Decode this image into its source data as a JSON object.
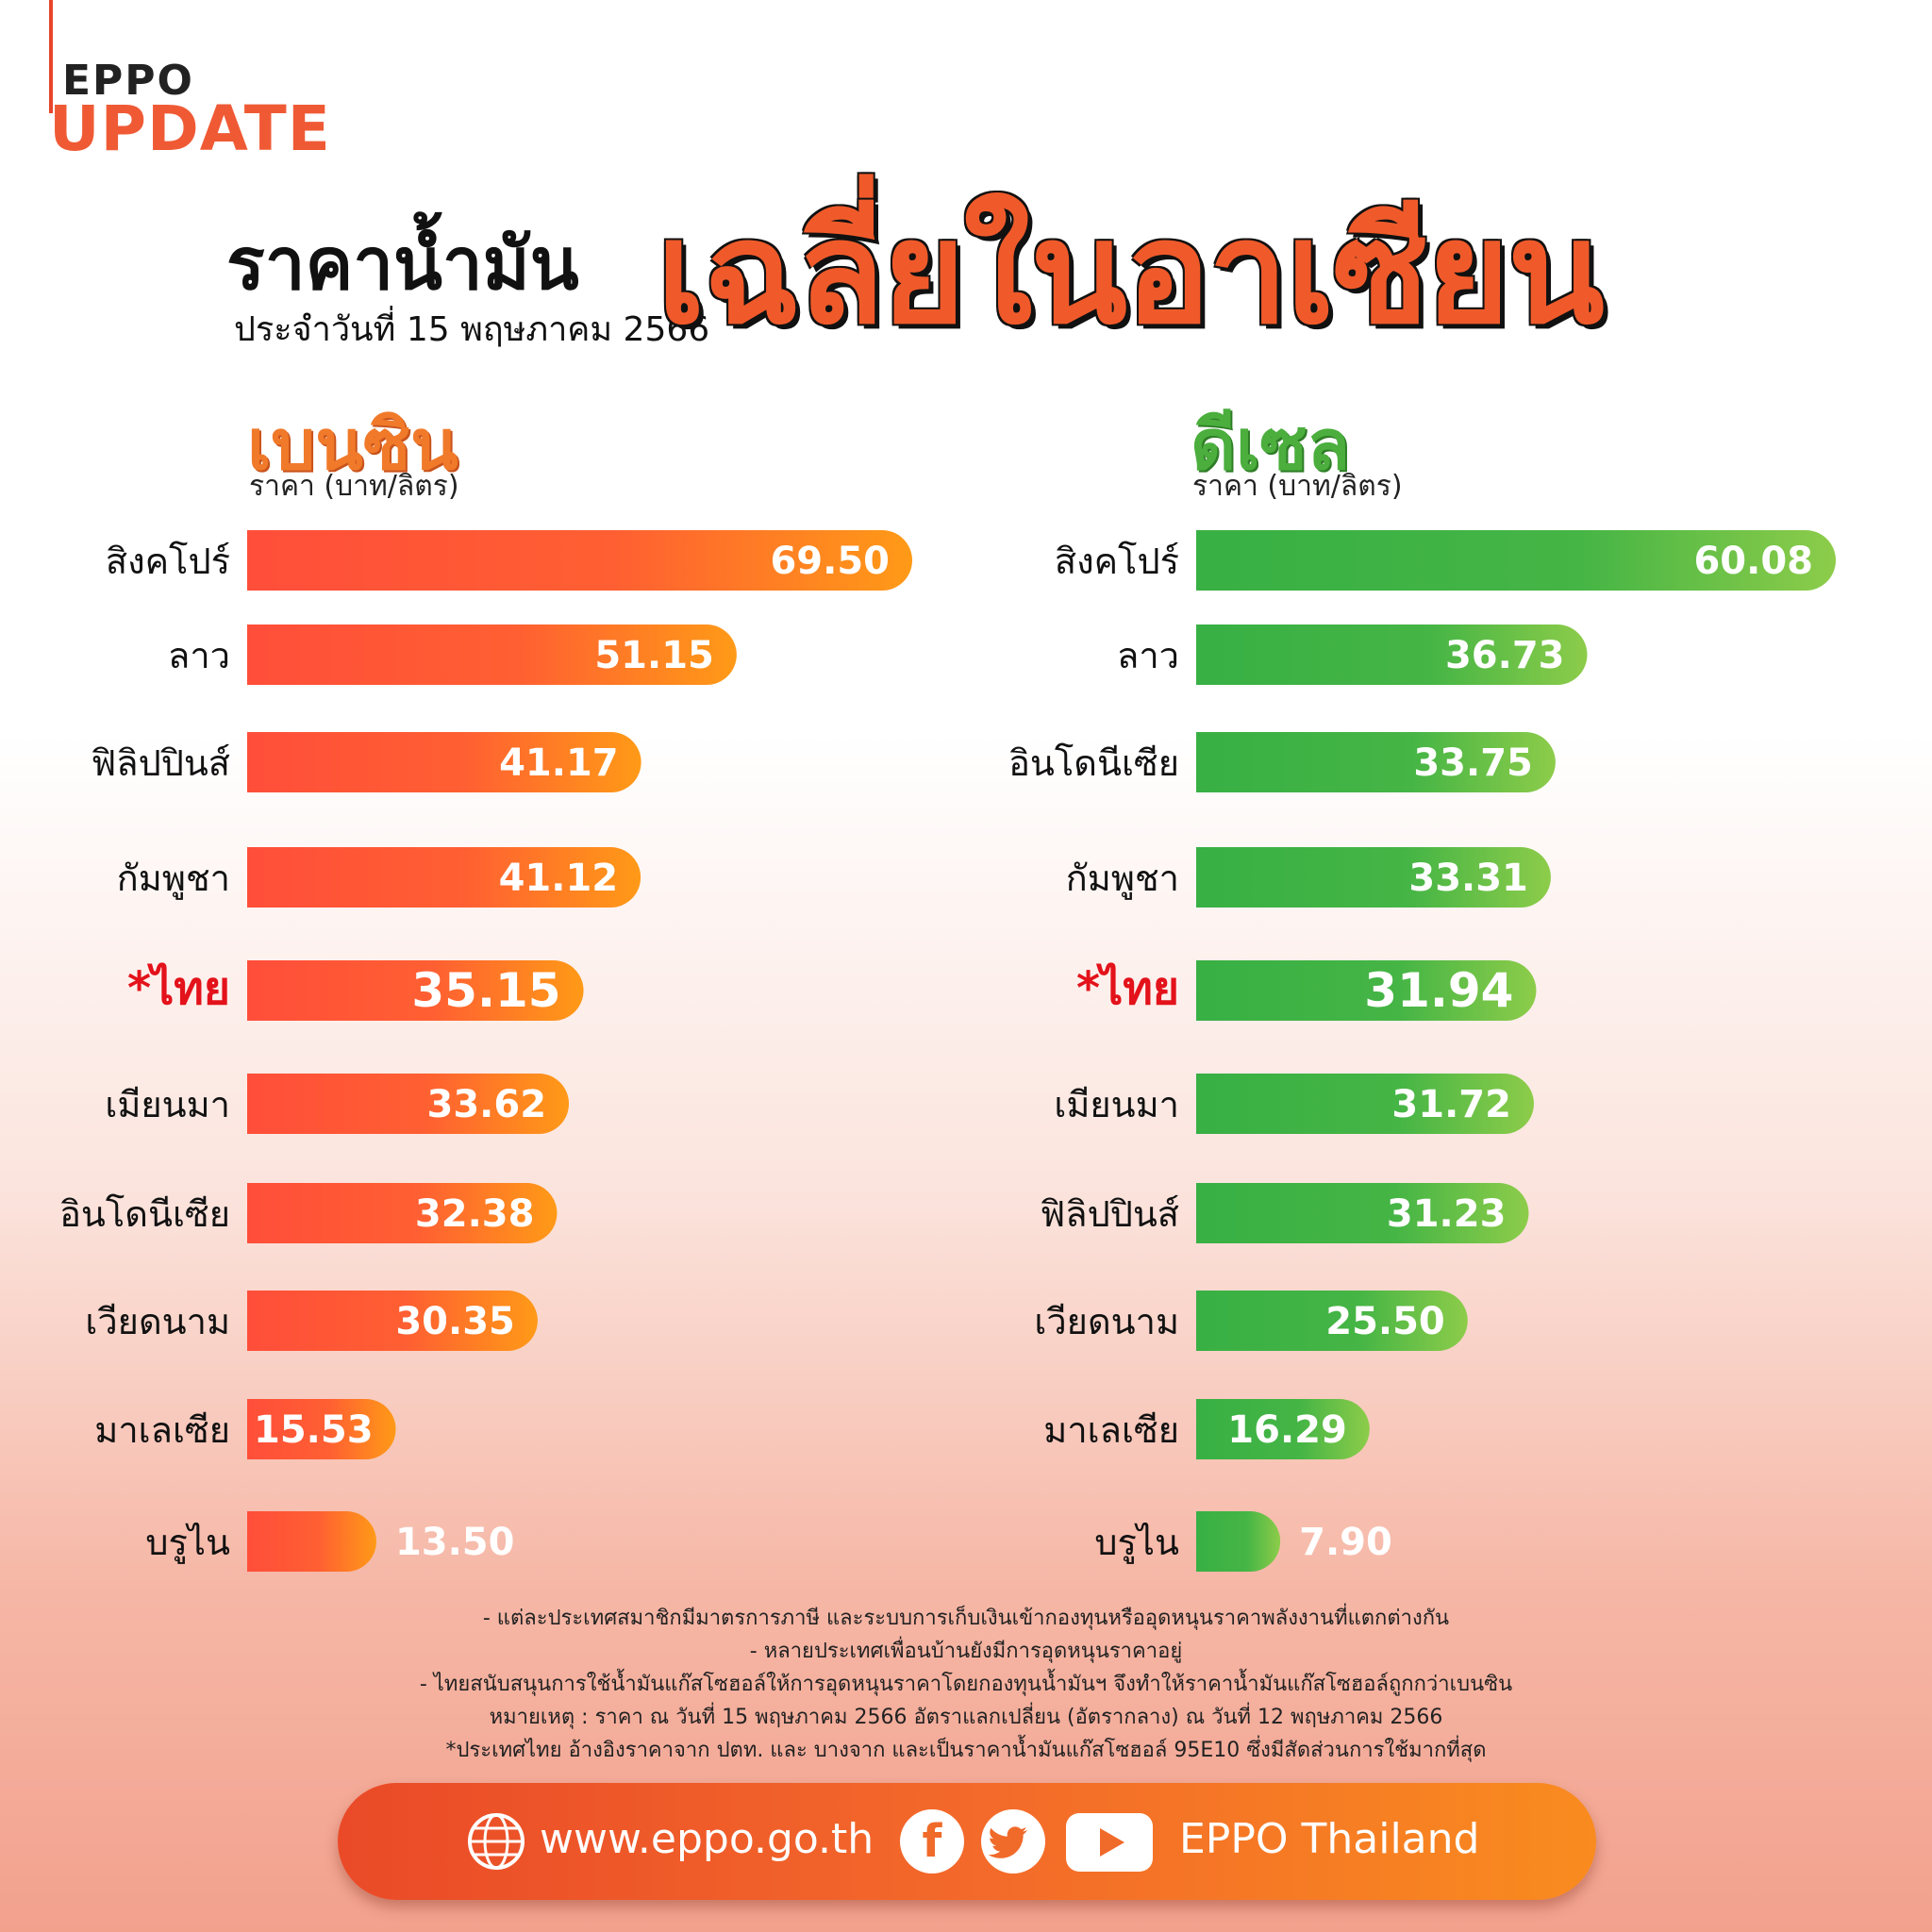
{
  "brand": {
    "line1": "EPPO",
    "line2": "UPDATE"
  },
  "header": {
    "title": "ราคาน้ำมัน",
    "date": "ประจำวันที่ 15 พฤษภาคม 2566",
    "highlight": "เฉลี่ยในอาเซียน"
  },
  "colors": {
    "petrol_start": "#ff4e3a",
    "petrol_end": "#ff9a17",
    "diesel_start": "#38b044",
    "diesel_end": "#8dcc4a",
    "thai_label": "#e3121b"
  },
  "chart_data": [
    {
      "type": "bar",
      "orientation": "horizontal",
      "title": "เบนซิน",
      "ylabel": "ราคา (บาท/ลิตร)",
      "categories": [
        "สิงคโปร์",
        "ลาว",
        "ฟิลิปปินส์",
        "กัมพูชา",
        "*ไทย",
        "เมียนมา",
        "อินโดนีเซีย",
        "เวียดนาม",
        "มาเลเซีย",
        "บรูไน"
      ],
      "values": [
        69.5,
        51.15,
        41.17,
        41.12,
        35.15,
        33.62,
        32.38,
        30.35,
        15.53,
        13.5
      ],
      "value_labels": [
        "69.50",
        "51.15",
        "41.17",
        "41.12",
        "35.15",
        "33.62",
        "32.38",
        "30.35",
        "15.53",
        "13.50"
      ],
      "highlight_index": 4
    },
    {
      "type": "bar",
      "orientation": "horizontal",
      "title": "ดีเซล",
      "ylabel": "ราคา (บาท/ลิตร)",
      "categories": [
        "สิงคโปร์",
        "ลาว",
        "อินโดนีเซีย",
        "กัมพูชา",
        "*ไทย",
        "เมียนมา",
        "ฟิลิปปินส์",
        "เวียดนาม",
        "มาเลเซีย",
        "บรูไน"
      ],
      "values": [
        60.08,
        36.73,
        33.75,
        33.31,
        31.94,
        31.72,
        31.23,
        25.5,
        16.29,
        7.9
      ],
      "value_labels": [
        "60.08",
        "36.73",
        "33.75",
        "33.31",
        "31.94",
        "31.72",
        "31.23",
        "25.50",
        "16.29",
        "7.90"
      ],
      "highlight_index": 4
    }
  ],
  "notes": [
    "- แต่ละประเทศสมาชิกมีมาตรการภาษี และระบบการเก็บเงินเข้ากองทุนหรืออุดหนุนราคาพลังงานที่แตกต่างกัน",
    "- หลายประเทศเพื่อนบ้านยังมีการอุดหนุนราคาอยู่",
    "- ไทยสนับสนุนการใช้น้ำมันแก๊สโซฮอล์ให้การอุดหนุนราคาโดยกองทุนน้ำมันฯ จึงทำให้ราคาน้ำมันแก๊สโซฮอล์ถูกกว่าเบนซิน",
    "หมายเหตุ : ราคา ณ วันที่ 15 พฤษภาคม 2566 อัตราแลกเปลี่ยน (อัตรากลาง) ณ วันที่ 12 พฤษภาคม 2566",
    "*ประเทศไทย อ้างอิงราคาจาก ปตท. และ บางจาก และเป็นราคาน้ำมันแก๊สโซฮอล์ 95E10 ซึ่งมีสัดส่วนการใช้มากที่สุด"
  ],
  "footer": {
    "url": "www.eppo.go.th",
    "handle": "EPPO Thailand",
    "icons": [
      "globe-icon",
      "facebook-icon",
      "twitter-icon",
      "youtube-icon"
    ]
  }
}
